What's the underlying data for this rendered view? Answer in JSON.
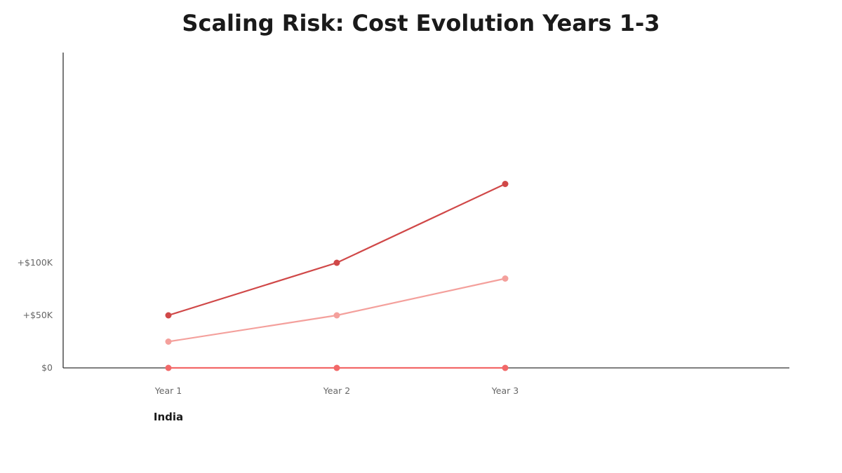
{
  "chart_data": {
    "type": "line",
    "title": "Scaling Risk: Cost Evolution Years 1-3",
    "categories": [
      "Year 1",
      "Year 2",
      "Year 3"
    ],
    "group_label": "India",
    "y_ticks": [
      {
        "value": 0,
        "label": "$0"
      },
      {
        "value": 50000,
        "label": "+$50K"
      },
      {
        "value": 100000,
        "label": "+$100K"
      }
    ],
    "ylim": [
      0,
      300000
    ],
    "grid": false,
    "series": [
      {
        "color": "#d04848",
        "values": [
          50000,
          100000,
          175000
        ]
      },
      {
        "color": "#f4a09c",
        "values": [
          25000,
          50000,
          85000
        ]
      },
      {
        "color": "#f26868",
        "values": [
          0,
          0,
          0
        ]
      }
    ]
  }
}
